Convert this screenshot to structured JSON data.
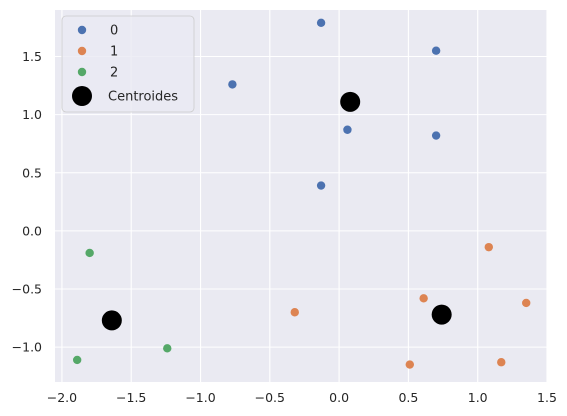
{
  "chart_data": {
    "type": "scatter",
    "title": "",
    "xlabel": "",
    "ylabel": "",
    "xlim": [
      -2.05,
      1.5
    ],
    "ylim": [
      -1.3,
      1.9
    ],
    "xticks": [
      -2.0,
      -1.5,
      -1.0,
      -0.5,
      0.0,
      0.5,
      1.0,
      1.5
    ],
    "xtick_labels": [
      "−2.0",
      "−1.5",
      "−1.0",
      "−0.5",
      "0.0",
      "0.5",
      "1.0",
      "1.5"
    ],
    "yticks": [
      -1.0,
      -0.5,
      0.0,
      0.5,
      1.0,
      1.5
    ],
    "ytick_labels": [
      "−1.0",
      "−0.5",
      "0.0",
      "0.5",
      "1.0",
      "1.5"
    ],
    "grid": true,
    "background": "#eaeaf2",
    "legend_position": "top-left",
    "series": [
      {
        "name": "0",
        "color": "#4c72b0",
        "marker": "circle",
        "points": [
          [
            -0.13,
            1.79
          ],
          [
            0.7,
            1.55
          ],
          [
            -0.77,
            1.26
          ],
          [
            0.06,
            0.87
          ],
          [
            0.7,
            0.82
          ],
          [
            -0.13,
            0.39
          ]
        ]
      },
      {
        "name": "1",
        "color": "#dd8452",
        "marker": "circle",
        "points": [
          [
            1.08,
            -0.14
          ],
          [
            0.61,
            -0.58
          ],
          [
            1.35,
            -0.62
          ],
          [
            -0.32,
            -0.7
          ],
          [
            0.51,
            -1.15
          ],
          [
            1.17,
            -1.13
          ]
        ]
      },
      {
        "name": "2",
        "color": "#55a868",
        "marker": "circle",
        "points": [
          [
            -1.8,
            -0.19
          ],
          [
            -1.24,
            -1.01
          ],
          [
            -1.89,
            -1.11
          ]
        ]
      },
      {
        "name": "Centroides",
        "color": "#000000",
        "marker": "big-circle",
        "points": [
          [
            0.08,
            1.11
          ],
          [
            0.74,
            -0.72
          ],
          [
            -1.64,
            -0.77
          ]
        ]
      }
    ]
  }
}
